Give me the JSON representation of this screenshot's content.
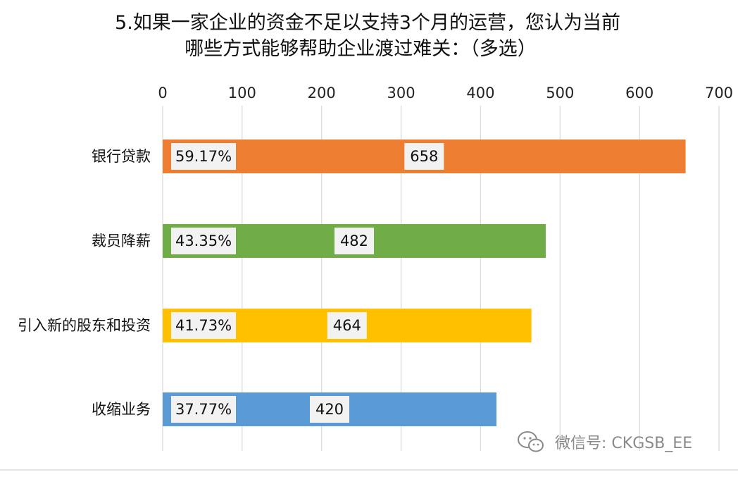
{
  "title": {
    "line1": "5.如果一家企业的资金不足以支持3个月的运营，您认为当前",
    "line2": "哪些方式能够帮助企业渡过难关：（多选）"
  },
  "chart_data": {
    "type": "bar",
    "orientation": "horizontal",
    "categories": [
      "银行贷款",
      "裁员降薪",
      "引入新的股东和投资",
      "收缩业务"
    ],
    "values": [
      658,
      482,
      464,
      420
    ],
    "percent_labels": [
      "59.17%",
      "43.35%",
      "41.73%",
      "37.77%"
    ],
    "value_labels": [
      "658",
      "482",
      "464",
      "420"
    ],
    "bar_colors": [
      "#ED7D31",
      "#70AD47",
      "#FFC000",
      "#5B9BD5"
    ],
    "xlim": [
      0,
      700
    ],
    "xticks": [
      "0",
      "100",
      "200",
      "300",
      "400",
      "500",
      "600",
      "700"
    ],
    "x_axis_position": "top",
    "grid": true,
    "legend": "none"
  },
  "watermark": {
    "icon": "wechat-icon",
    "text": "微信号: CKGSB_EE"
  }
}
